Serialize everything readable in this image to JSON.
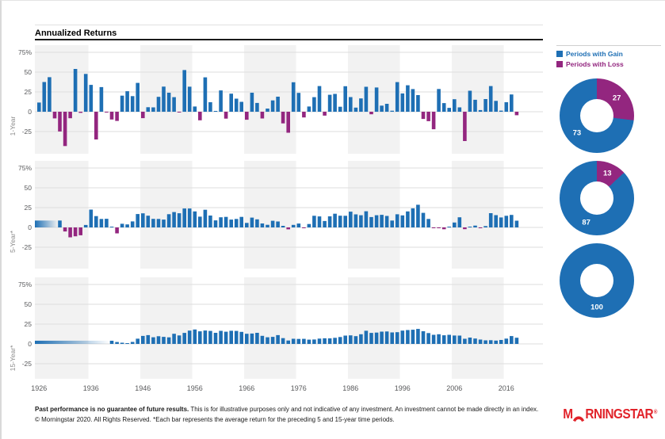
{
  "header": {
    "title": "Annualized Returns"
  },
  "legend": {
    "items": [
      {
        "label": "Periods with Gain",
        "color": "#1E6FB4"
      },
      {
        "label": "Periods with Loss",
        "color": "#93267F"
      }
    ]
  },
  "colors": {
    "gain": "#1E6FB4",
    "loss": "#93267F",
    "stripe": "#F2F2F2",
    "grid": "#DDDDDD",
    "axis_text": "#58595B",
    "logo_red": "#E1232A"
  },
  "chart_data": [
    {
      "type": "bar",
      "title": "Annualized Returns",
      "x_start": 1926,
      "x_end": 2018,
      "xticks": [
        1926,
        1936,
        1946,
        1956,
        1966,
        1976,
        1986,
        1996,
        2006,
        2016
      ],
      "yticks": [
        {
          "v": 75,
          "label": "75%"
        },
        {
          "v": 50,
          "label": "50"
        },
        {
          "v": 25,
          "label": "25"
        },
        {
          "v": 0,
          "label": "0"
        },
        {
          "v": -25,
          "label": "-25"
        }
      ],
      "ylim": [
        -53,
        84
      ],
      "grid": "horizontal",
      "background": "alternating decade stripes",
      "panels": [
        "1-Year",
        "5-Year*",
        "15-Year*"
      ],
      "series": [
        {
          "name": "1-Year",
          "window_years": 1,
          "values": [
            11.6,
            37.5,
            43.6,
            -8.4,
            -24.9,
            -43.3,
            -8.2,
            54.0,
            -1.4,
            47.7,
            33.9,
            -35.0,
            31.1,
            -0.4,
            -9.8,
            -11.6,
            20.3,
            25.9,
            19.7,
            36.4,
            -8.1,
            5.7,
            5.5,
            18.8,
            31.7,
            24.0,
            18.4,
            -1.0,
            52.6,
            31.6,
            6.6,
            -10.8,
            43.4,
            12.0,
            0.5,
            26.9,
            -8.7,
            22.8,
            16.5,
            12.5,
            -10.1,
            24.0,
            11.1,
            -8.5,
            4.0,
            14.3,
            19.0,
            -14.7,
            -26.5,
            37.2,
            23.8,
            -7.2,
            6.6,
            18.4,
            32.4,
            -4.9,
            21.4,
            22.5,
            6.3,
            32.2,
            18.5,
            5.2,
            16.8,
            31.5,
            -3.2,
            30.6,
            7.7,
            10.0,
            1.3,
            37.4,
            23.1,
            33.4,
            28.6,
            21.0,
            -9.1,
            -11.9,
            -22.1,
            28.7,
            10.9,
            4.9,
            15.8,
            5.5,
            -37.0,
            26.5,
            15.1,
            2.1,
            16.0,
            32.4,
            13.7,
            1.4,
            12.0,
            21.8,
            -4.4
          ]
        },
        {
          "name": "5-Year*",
          "window_years": 5,
          "derivation": "annualized rolling 5-year return computed from the 1-Year values; incomplete periods shown as fading band"
        },
        {
          "name": "15-Year*",
          "window_years": 15,
          "derivation": "annualized rolling 15-year return computed from the 1-Year values; incomplete periods shown as fading band"
        }
      ]
    },
    {
      "type": "pie",
      "variant": "donut",
      "name": "1-Year periods",
      "labels": [
        "Periods with Gain",
        "Periods with Loss"
      ],
      "values": [
        73,
        27
      ]
    },
    {
      "type": "pie",
      "variant": "donut",
      "name": "5-Year periods",
      "labels": [
        "Periods with Gain",
        "Periods with Loss"
      ],
      "values": [
        87,
        13
      ]
    },
    {
      "type": "pie",
      "variant": "donut",
      "name": "15-Year periods",
      "labels": [
        "Periods with Gain",
        "Periods with Loss"
      ],
      "values": [
        100,
        0
      ]
    }
  ],
  "footer": {
    "line1_bold": "Past performance is no guarantee of future results.",
    "line1_rest": " This is for illustrative purposes only and not indicative of any investment. An investment cannot be made directly in an index.",
    "line2": "© Morningstar 2020. All Rights Reserved. *Each bar represents the average return for the preceding 5 and 15-year time periods."
  },
  "logo": {
    "m": "M",
    "rest": "RNINGSTAR",
    "registered": "®"
  }
}
